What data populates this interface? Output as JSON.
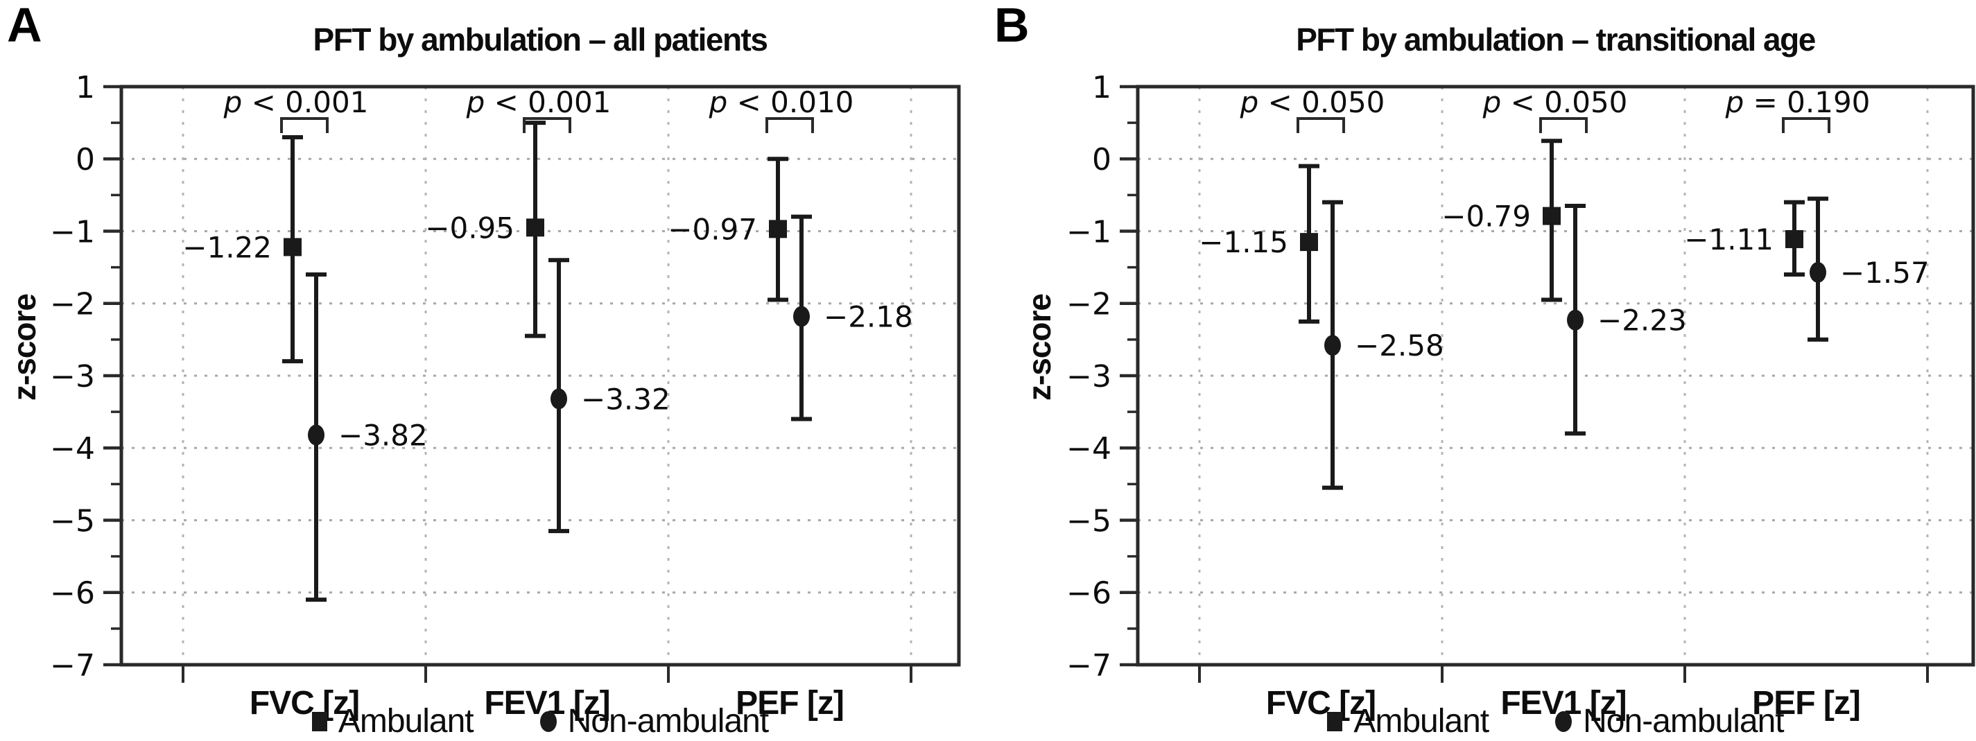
{
  "chart_data": {
    "type": "errorbar",
    "grid": true,
    "legend_position": "bottom",
    "colors": {
      "data": "#1a1a1a",
      "grid_h": "#a8a8a8",
      "grid_v": "#b4b4b4",
      "frame": "#2a2a2a",
      "text": "#0d0d0d",
      "background": "#ffffff"
    },
    "legend": [
      "Ambulant",
      "Non-ambulant"
    ],
    "panels": [
      {
        "panel_label": "A",
        "title": "PFT by ambulation – all patients",
        "ylabel": "z-score",
        "ylim": [
          -7,
          1
        ],
        "yticks": [
          1,
          0,
          -1,
          -2,
          -3,
          -4,
          -5,
          -6,
          -7
        ],
        "categories": [
          "FVC [z]",
          "FEV1 [z]",
          "PEF [z]"
        ],
        "p_annotations": [
          "p < 0.001",
          "p < 0.001",
          "p < 0.010"
        ],
        "series": [
          {
            "name": "Ambulant",
            "marker": "square",
            "means": [
              -1.22,
              -0.95,
              -0.97
            ],
            "value_labels": [
              "−1.22",
              "−0.95",
              "−0.97"
            ],
            "ci_high": [
              0.3,
              0.5,
              0.0
            ],
            "ci_low": [
              -2.8,
              -2.45,
              -1.95
            ]
          },
          {
            "name": "Non-ambulant",
            "marker": "circle",
            "means": [
              -3.82,
              -3.32,
              -2.18
            ],
            "value_labels": [
              "−3.82",
              "−3.32",
              "−2.18"
            ],
            "ci_high": [
              -1.6,
              -1.4,
              -0.8
            ],
            "ci_low": [
              -6.1,
              -5.15,
              -3.6
            ]
          }
        ]
      },
      {
        "panel_label": "B",
        "title": "PFT by ambulation – transitional age",
        "ylabel": "z-score",
        "ylim": [
          -7,
          1
        ],
        "yticks": [
          1,
          0,
          -1,
          -2,
          -3,
          -4,
          -5,
          -6,
          -7
        ],
        "categories": [
          "FVC [z]",
          "FEV1 [z]",
          "PEF [z]"
        ],
        "p_annotations": [
          "p < 0.050",
          "p < 0.050",
          "p = 0.190"
        ],
        "series": [
          {
            "name": "Ambulant",
            "marker": "square",
            "means": [
              -1.15,
              -0.79,
              -1.11
            ],
            "value_labels": [
              "−1.15",
              "−0.79",
              "−1.11"
            ],
            "ci_high": [
              -0.1,
              0.25,
              -0.6
            ],
            "ci_low": [
              -2.25,
              -1.95,
              -1.6
            ]
          },
          {
            "name": "Non-ambulant",
            "marker": "circle",
            "means": [
              -2.58,
              -2.23,
              -1.57
            ],
            "value_labels": [
              "−2.58",
              "−2.23",
              "−1.57"
            ],
            "ci_high": [
              -0.6,
              -0.65,
              -0.55
            ],
            "ci_low": [
              -4.55,
              -3.8,
              -2.5
            ]
          }
        ]
      }
    ]
  }
}
